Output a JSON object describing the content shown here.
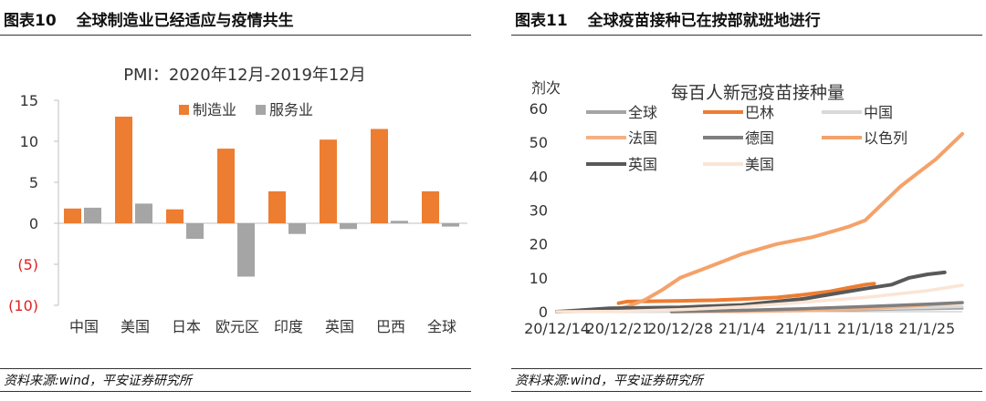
{
  "left": {
    "figure_number": "图表10",
    "figure_title": "全球制造业已经适应与疫情共生",
    "source": "资料来源:wind，平安证券研究所"
  },
  "right": {
    "figure_number": "图表11",
    "figure_title": "全球疫苗接种已在按部就班地进行",
    "source": "资料来源:wind，平安证券研究所"
  },
  "chart_data": [
    {
      "type": "bar",
      "title": "PMI：2020年12月-2019年12月",
      "categories": [
        "中国",
        "美国",
        "日本",
        "欧元区",
        "印度",
        "英国",
        "巴西",
        "全球"
      ],
      "series": [
        {
          "name": "制造业",
          "color": "#ED7D31",
          "values": [
            1.8,
            13.0,
            1.7,
            9.1,
            3.9,
            10.2,
            11.5,
            3.9
          ]
        },
        {
          "name": "服务业",
          "color": "#A5A5A5",
          "values": [
            1.9,
            2.4,
            -1.9,
            -6.5,
            -1.3,
            -0.7,
            0.3,
            -0.4
          ]
        }
      ],
      "yticks": [
        "15",
        "10",
        "5",
        "0",
        "(5)",
        "(10)"
      ],
      "ylim": [
        -10,
        15
      ],
      "legend_position": "top-right"
    },
    {
      "type": "line",
      "title": "每百人新冠疫苗接种量",
      "ylabel": "剂次",
      "ylim": [
        0,
        60
      ],
      "yticks": [
        "0",
        "10",
        "20",
        "30",
        "40",
        "50",
        "60"
      ],
      "xlim": [
        "2020-12-14",
        "2021-01-29"
      ],
      "xticks": [
        "20/12/14",
        "20/12/21",
        "20/12/28",
        "21/1/4",
        "21/1/11",
        "21/1/18",
        "21/1/25"
      ],
      "legend_position": "top-left",
      "series": [
        {
          "name": "全球",
          "color": "#A5A5A5",
          "x": [
            "2020-12-14",
            "2020-12-20",
            "2020-12-27",
            "2021-01-03",
            "2021-01-10",
            "2021-01-17",
            "2021-01-24",
            "2021-01-29"
          ],
          "y": [
            0,
            0.05,
            0.1,
            0.2,
            0.35,
            0.55,
            0.8,
            1.0
          ]
        },
        {
          "name": "巴林",
          "color": "#ED7D31",
          "x": [
            "2020-12-21",
            "2020-12-22",
            "2020-12-25",
            "2020-12-28",
            "2021-01-01",
            "2021-01-04",
            "2021-01-08",
            "2021-01-11",
            "2021-01-14",
            "2021-01-16",
            "2021-01-18",
            "2021-01-19"
          ],
          "y": [
            2.5,
            3.0,
            3.1,
            3.2,
            3.4,
            3.7,
            4.2,
            5.0,
            6.0,
            7.0,
            8.0,
            8.3
          ]
        },
        {
          "name": "中国",
          "color": "#D9D9D9",
          "x": [
            "2020-12-14",
            "2020-12-28",
            "2021-01-04",
            "2021-01-11",
            "2021-01-18",
            "2021-01-25",
            "2021-01-29"
          ],
          "y": [
            0,
            0.1,
            0.3,
            0.5,
            0.8,
            1.2,
            1.5
          ]
        },
        {
          "name": "法国",
          "color": "#F4B183",
          "x": [
            "2020-12-27",
            "2021-01-04",
            "2021-01-11",
            "2021-01-18",
            "2021-01-25",
            "2021-01-29"
          ],
          "y": [
            0,
            0.05,
            0.3,
            0.9,
            2.0,
            2.6
          ]
        },
        {
          "name": "德国",
          "color": "#7F7F7F",
          "x": [
            "2020-12-27",
            "2021-01-04",
            "2021-01-11",
            "2021-01-18",
            "2021-01-25",
            "2021-01-29"
          ],
          "y": [
            0,
            0.4,
            0.9,
            1.5,
            2.2,
            2.7
          ]
        },
        {
          "name": "以色列",
          "color": "#F4A26A",
          "x": [
            "2020-12-14",
            "2020-12-20",
            "2020-12-22",
            "2020-12-24",
            "2020-12-26",
            "2020-12-28",
            "2020-12-31",
            "2021-01-02",
            "2021-01-04",
            "2021-01-06",
            "2021-01-08",
            "2021-01-10",
            "2021-01-12",
            "2021-01-14",
            "2021-01-16",
            "2021-01-18",
            "2021-01-20",
            "2021-01-22",
            "2021-01-24",
            "2021-01-26",
            "2021-01-29"
          ],
          "y": [
            0,
            0.3,
            1.5,
            3.5,
            6.5,
            10.0,
            13.0,
            15.0,
            17.0,
            18.5,
            20.0,
            21.0,
            22.0,
            23.5,
            25.0,
            27.0,
            32.0,
            37.0,
            41.0,
            45.0,
            52.5
          ]
        },
        {
          "name": "英国",
          "color": "#595959",
          "x": [
            "2020-12-14",
            "2020-12-20",
            "2020-12-28",
            "2021-01-04",
            "2021-01-11",
            "2021-01-18",
            "2021-01-21",
            "2021-01-23",
            "2021-01-25",
            "2021-01-27"
          ],
          "y": [
            0,
            1.0,
            1.3,
            2.0,
            3.8,
            6.8,
            8.0,
            10.0,
            11.0,
            11.6
          ]
        },
        {
          "name": "美国",
          "color": "#FBE5D6",
          "x": [
            "2020-12-14",
            "2020-12-21",
            "2020-12-28",
            "2021-01-04",
            "2021-01-11",
            "2021-01-18",
            "2021-01-25",
            "2021-01-29"
          ],
          "y": [
            0,
            0.1,
            0.6,
            1.4,
            2.8,
            4.2,
            6.2,
            7.8
          ]
        }
      ]
    }
  ]
}
